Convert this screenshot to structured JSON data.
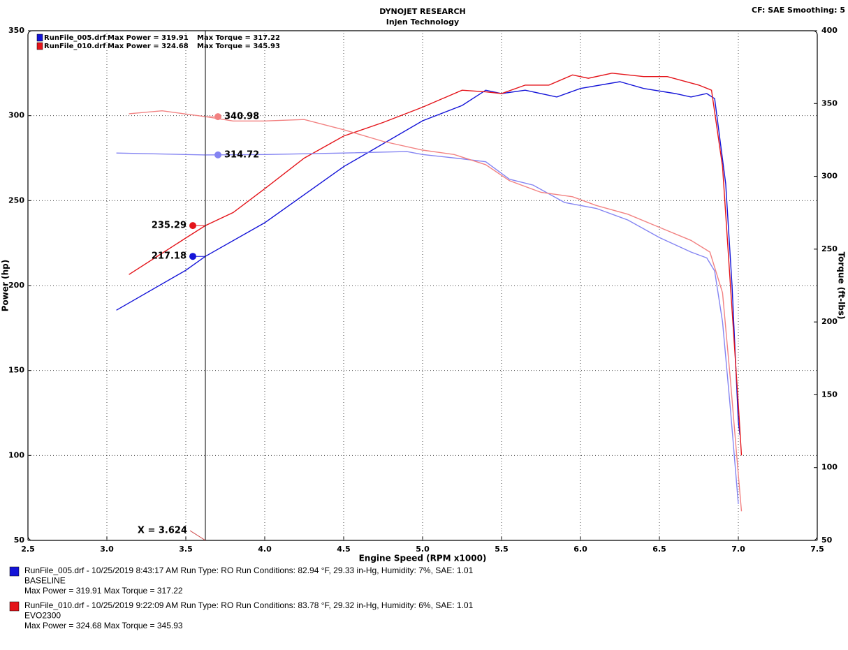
{
  "chart_data": {
    "type": "line",
    "title": "DYNOJET RESEARCH",
    "subtitle": "Injen Technology",
    "settings_label": "CF: SAE  Smoothing: 5",
    "xlabel": "Engine Speed (RPM x1000)",
    "ylabel": "Power (hp)",
    "y2label": "Torque (ft-lbs)",
    "grid": true,
    "xlim": [
      2.5,
      7.5
    ],
    "xticks": [
      2.5,
      {
        "value": 3,
        "label": "3.0"
      },
      3.5,
      {
        "value": 4,
        "label": "4.0"
      },
      4.5,
      {
        "value": 5,
        "label": "5.0"
      },
      5.5,
      {
        "value": 6,
        "label": "6.0"
      },
      6.5,
      {
        "value": 7,
        "label": "7.0"
      },
      7.5
    ],
    "ylim": [
      50,
      350
    ],
    "yticks": [
      50,
      100,
      150,
      200,
      250,
      300,
      350
    ],
    "y2lim": [
      50,
      400
    ],
    "y2ticks": [
      50,
      100,
      150,
      200,
      250,
      300,
      350,
      400
    ],
    "cursor": {
      "value": 3.624,
      "label": "X = 3.624"
    },
    "series": [
      {
        "name": "RunFile_005.drf",
        "max_label": "Max Power = 319.91",
        "color": "#1414d8",
        "cursor_value": 217.18,
        "x": [
          3.06,
          3.5,
          3.624,
          4.0,
          4.5,
          5.0,
          5.25,
          5.4,
          5.5,
          5.65,
          5.85,
          6.0,
          6.25,
          6.4,
          6.6,
          6.7,
          6.8,
          6.85,
          6.92,
          6.96,
          7.0,
          7.01
        ],
        "values": [
          185.5,
          209,
          217.18,
          237,
          270,
          297,
          306,
          315,
          313,
          315,
          311,
          316,
          320,
          316,
          313,
          311,
          313,
          310,
          260,
          200,
          120,
          112
        ]
      },
      {
        "name": "RunFile_010.drf",
        "max_label": "Max Power = 324.68",
        "color": "#e4141a",
        "cursor_value": 235.29,
        "x": [
          3.14,
          3.5,
          3.624,
          3.8,
          4.0,
          4.25,
          4.5,
          4.75,
          5.0,
          5.25,
          5.4,
          5.5,
          5.65,
          5.8,
          5.95,
          6.05,
          6.2,
          6.4,
          6.55,
          6.75,
          6.83,
          6.9,
          6.95,
          7.0,
          7.02
        ],
        "values": [
          206.5,
          228,
          235.29,
          243,
          257,
          275,
          288,
          296,
          305,
          315,
          314,
          313,
          318,
          318,
          324,
          322,
          325,
          323,
          323,
          318,
          315,
          270,
          200,
          130,
          100
        ]
      },
      {
        "axis": "y2",
        "max_label": "Max Torque = 317.22",
        "color": "#8484f2",
        "cursor_value": 314.72,
        "x": [
          3.06,
          3.5,
          3.624,
          4.0,
          4.5,
          4.9,
          5.0,
          5.25,
          5.4,
          5.55,
          5.7,
          5.9,
          6.1,
          6.3,
          6.5,
          6.7,
          6.8,
          6.85,
          6.9,
          6.95,
          7.0
        ],
        "values": [
          316,
          315,
          314.72,
          315,
          316,
          317,
          315,
          312,
          310,
          298,
          294,
          282,
          278,
          270,
          258,
          248,
          244,
          235,
          200,
          140,
          75
        ]
      },
      {
        "axis": "y2",
        "max_label": "Max Torque = 345.93",
        "color": "#f28282",
        "cursor_value": 340.98,
        "x": [
          3.14,
          3.35,
          3.624,
          3.8,
          4.0,
          4.25,
          4.5,
          4.75,
          5.0,
          5.2,
          5.4,
          5.55,
          5.75,
          5.95,
          6.1,
          6.3,
          6.5,
          6.7,
          6.82,
          6.9,
          6.95,
          7.0,
          7.02
        ],
        "values": [
          343,
          345,
          340.98,
          338,
          338,
          339,
          332,
          324,
          318,
          315,
          308,
          297,
          289,
          286,
          280,
          274,
          265,
          256,
          248,
          220,
          160,
          95,
          70
        ]
      }
    ],
    "run_info": [
      {
        "color": "#1414d8",
        "lines": [
          "RunFile_005.drf - 10/25/2019 8:43:17 AM  Run Type: RO  Run Conditions: 82.94 °F, 29.33 in-Hg,  Humidity:  7%, SAE: 1.01",
          "BASELINE",
          "Max Power = 319.91  Max Torque = 317.22"
        ]
      },
      {
        "color": "#e4141a",
        "lines": [
          "RunFile_010.drf - 10/25/2019 9:22:09 AM  Run Type: RO  Run Conditions: 83.78 °F, 29.32 in-Hg,  Humidity:  6%, SAE: 1.01",
          "EVO2300",
          "Max Power = 324.68  Max Torque = 345.93"
        ]
      }
    ]
  }
}
